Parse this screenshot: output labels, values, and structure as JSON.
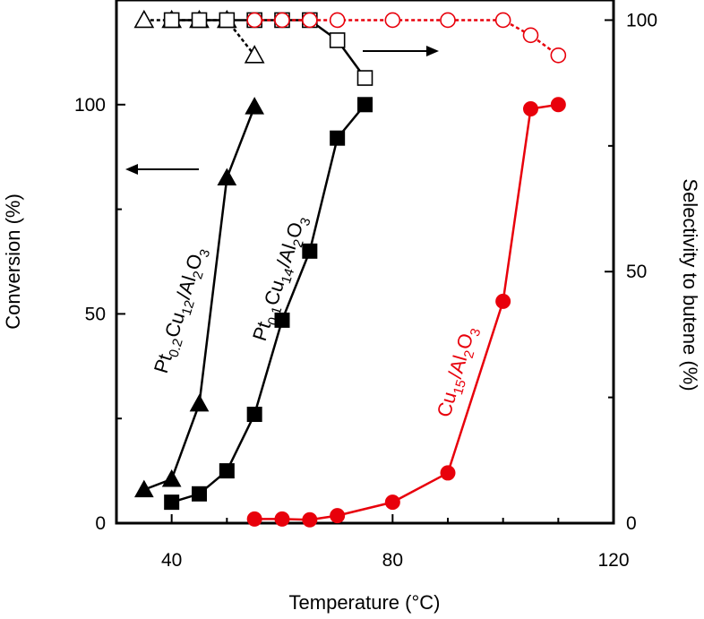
{
  "chart_data": {
    "type": "line",
    "x_axis": {
      "label": "Temperature (°C)",
      "range": [
        30,
        120
      ],
      "ticks": [
        40,
        80,
        120
      ]
    },
    "y_axis_left": {
      "label": "Conversion (%)",
      "range": [
        0,
        125
      ],
      "ticks": [
        0,
        50,
        100
      ]
    },
    "y_axis_right": {
      "label": "Selectivity to butene (%)",
      "range": [
        0,
        104
      ],
      "ticks": [
        0,
        50,
        100
      ]
    },
    "series": [
      {
        "name": "Pt0.2Cu12/Al2O3 conversion",
        "axis": "left",
        "color": "#000000",
        "marker": "triangle",
        "filled": true,
        "line": "solid",
        "points": [
          [
            35,
            8
          ],
          [
            40,
            10.5
          ],
          [
            45,
            28.5
          ],
          [
            50,
            82.5
          ],
          [
            55,
            99.5
          ]
        ]
      },
      {
        "name": "Pt0.1Cu14/Al2O3 conversion",
        "axis": "left",
        "color": "#000000",
        "marker": "square",
        "filled": true,
        "line": "solid",
        "points": [
          [
            40,
            5
          ],
          [
            45,
            7
          ],
          [
            50,
            12.5
          ],
          [
            55,
            26
          ],
          [
            60,
            48.5
          ],
          [
            65,
            65
          ],
          [
            70,
            92
          ],
          [
            75,
            100
          ]
        ]
      },
      {
        "name": "Cu15/Al2O3 conversion",
        "axis": "left",
        "color": "#e8000b",
        "marker": "circle",
        "filled": true,
        "line": "solid",
        "points": [
          [
            55,
            1
          ],
          [
            60,
            1
          ],
          [
            65,
            0.8
          ],
          [
            70,
            1.8
          ],
          [
            80,
            5
          ],
          [
            90,
            12
          ],
          [
            100,
            53
          ],
          [
            105,
            99
          ],
          [
            110,
            100
          ]
        ]
      },
      {
        "name": "Pt0.2Cu12/Al2O3 selectivity",
        "axis": "right",
        "color": "#000000",
        "marker": "triangle",
        "filled": false,
        "line": "dashed",
        "points": [
          [
            35,
            100
          ],
          [
            40,
            100
          ],
          [
            45,
            100
          ],
          [
            50,
            100
          ],
          [
            55,
            93
          ]
        ]
      },
      {
        "name": "Pt0.1Cu14/Al2O3 selectivity",
        "axis": "right",
        "color": "#000000",
        "marker": "square",
        "filled": false,
        "line": "solid",
        "points": [
          [
            40,
            100
          ],
          [
            45,
            100
          ],
          [
            50,
            100
          ],
          [
            55,
            100
          ],
          [
            60,
            100
          ],
          [
            65,
            100
          ],
          [
            70,
            96
          ],
          [
            75,
            88.5
          ]
        ]
      },
      {
        "name": "Cu15/Al2O3 selectivity",
        "axis": "right",
        "color": "#e8000b",
        "marker": "circle",
        "filled": false,
        "line": "dashed",
        "points": [
          [
            55,
            100
          ],
          [
            60,
            100
          ],
          [
            65,
            100
          ],
          [
            70,
            100
          ],
          [
            80,
            100
          ],
          [
            90,
            100
          ],
          [
            100,
            100
          ],
          [
            105,
            97
          ],
          [
            110,
            93
          ]
        ]
      }
    ],
    "annotations": [
      {
        "name": "pt02-label",
        "base": "Pt",
        "sub1": "0.2",
        "mid1": "Cu",
        "sub2": "12",
        "mid2": "/Al",
        "sub3": "2",
        "mid3": "O",
        "sub4": "3",
        "color": "#000000"
      },
      {
        "name": "pt01-label",
        "base": "Pt",
        "sub1": "0.1",
        "mid1": "Cu",
        "sub2": "14",
        "mid2": "/Al",
        "sub3": "2",
        "mid3": "O",
        "sub4": "3",
        "color": "#000000"
      },
      {
        "name": "cu15-label",
        "base": "Cu",
        "sub1": "15",
        "mid1": "/Al",
        "sub2": "2",
        "mid2": "O",
        "sub3": "3",
        "color": "#e8000b"
      }
    ],
    "arrows": [
      {
        "points_to": "left axis",
        "direction": "left"
      },
      {
        "points_to": "right axis",
        "direction": "right"
      }
    ]
  }
}
